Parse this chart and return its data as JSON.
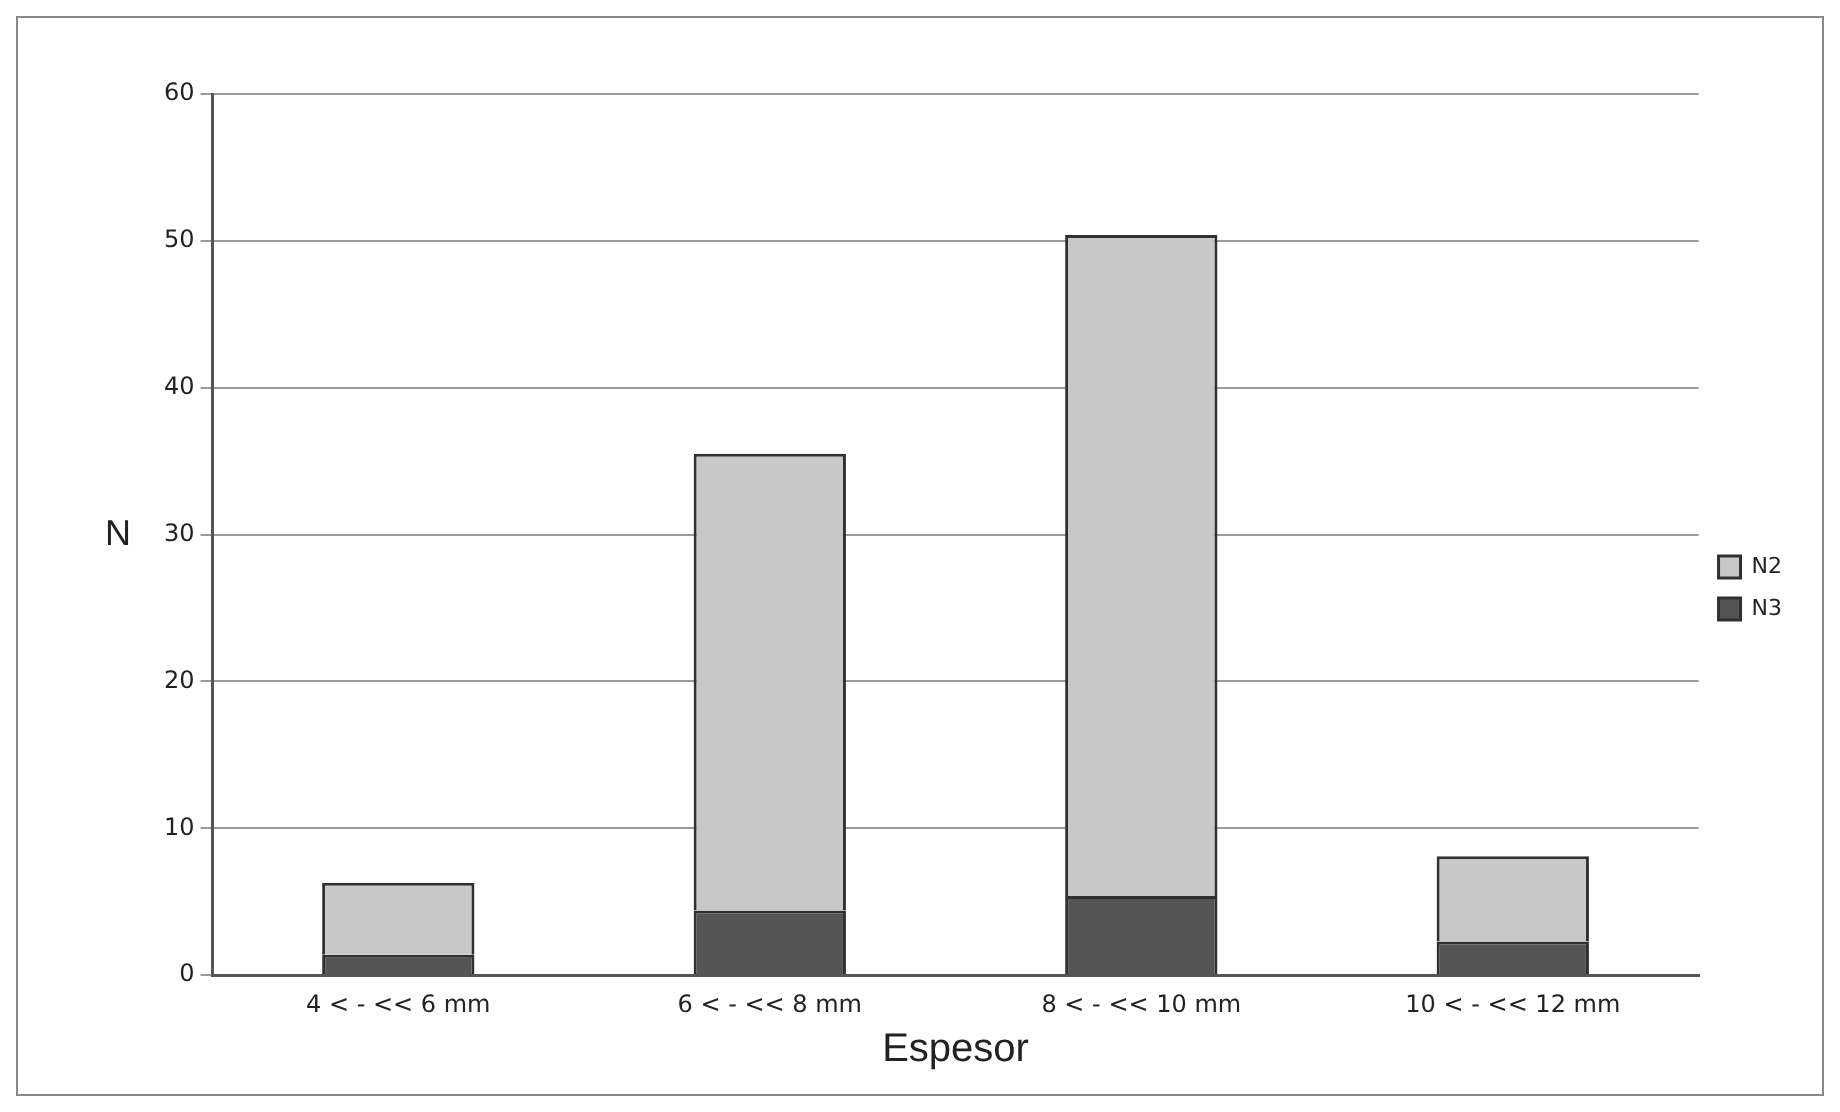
{
  "chart_data": {
    "type": "bar",
    "stacked": true,
    "xlabel": "Espesor",
    "ylabel": "N",
    "categories": [
      "4 < - << 6 mm",
      "6 < - << 8 mm",
      "8 < - << 10 mm",
      "10 < - << 12 mm"
    ],
    "series": [
      {
        "name": "N3",
        "color": "#555555",
        "values": [
          1.4,
          4.4,
          5.4,
          2.3
        ]
      },
      {
        "name": "N2",
        "color": "#c8c8c8",
        "values": [
          4.9,
          31.1,
          45,
          5.8
        ]
      }
    ],
    "ylim": [
      0,
      60
    ],
    "yticks": [
      0,
      10,
      20,
      30,
      40,
      50,
      60
    ],
    "grid": "y",
    "legend": "right"
  }
}
